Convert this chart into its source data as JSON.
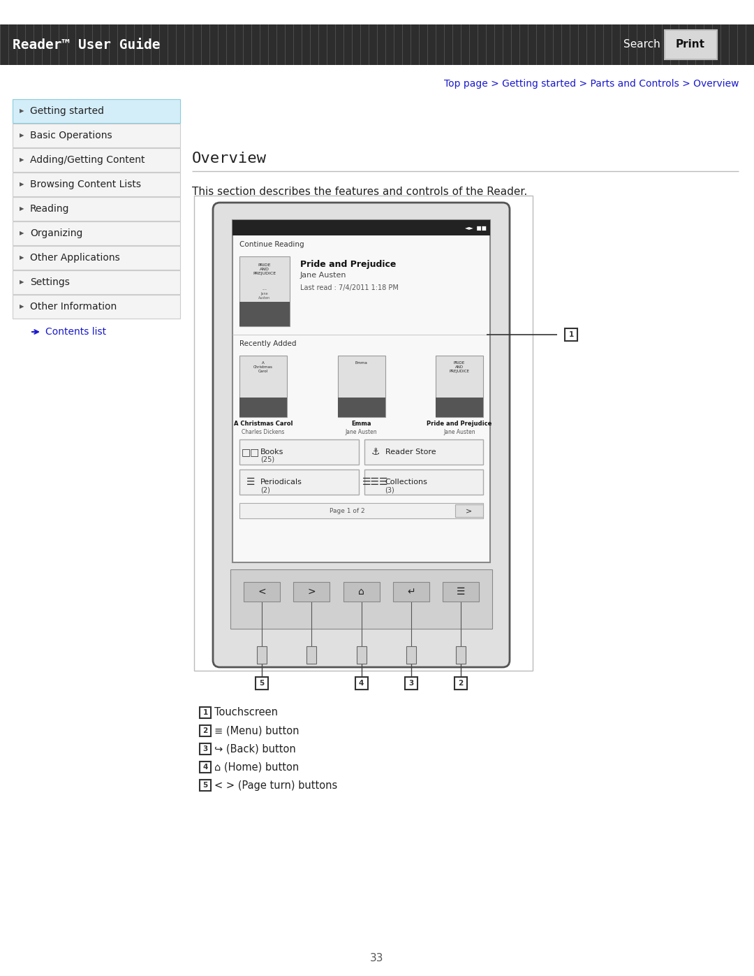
{
  "bg_color": "#ffffff",
  "header_bg": "#2d2d2d",
  "header_text": "Reader™ User Guide",
  "header_text_color": "#ffffff",
  "header_search": "Search",
  "header_print": "Print",
  "breadcrumb": "Top page > Getting started > Parts and Controls > Overview",
  "breadcrumb_color": "#1a1acc",
  "section_title": "Overview",
  "section_desc": "This section describes the features and controls of the Reader.",
  "nav_items": [
    "Getting started",
    "Basic Operations",
    "Adding/Getting Content",
    "Browsing Content Lists",
    "Reading",
    "Organizing",
    "Other Applications",
    "Settings",
    "Other Information"
  ],
  "nav_active": 0,
  "nav_active_bg": "#d4eef9",
  "nav_bg": "#f4f4f4",
  "nav_border": "#cccccc",
  "contents_list_text": "Contents list",
  "contents_list_color": "#1a1acc",
  "legend_items": [
    "Touchscreen",
    "(Menu) button",
    "(Back) button",
    "(Home) button",
    "< > (Page turn) buttons"
  ],
  "page_number": "33"
}
